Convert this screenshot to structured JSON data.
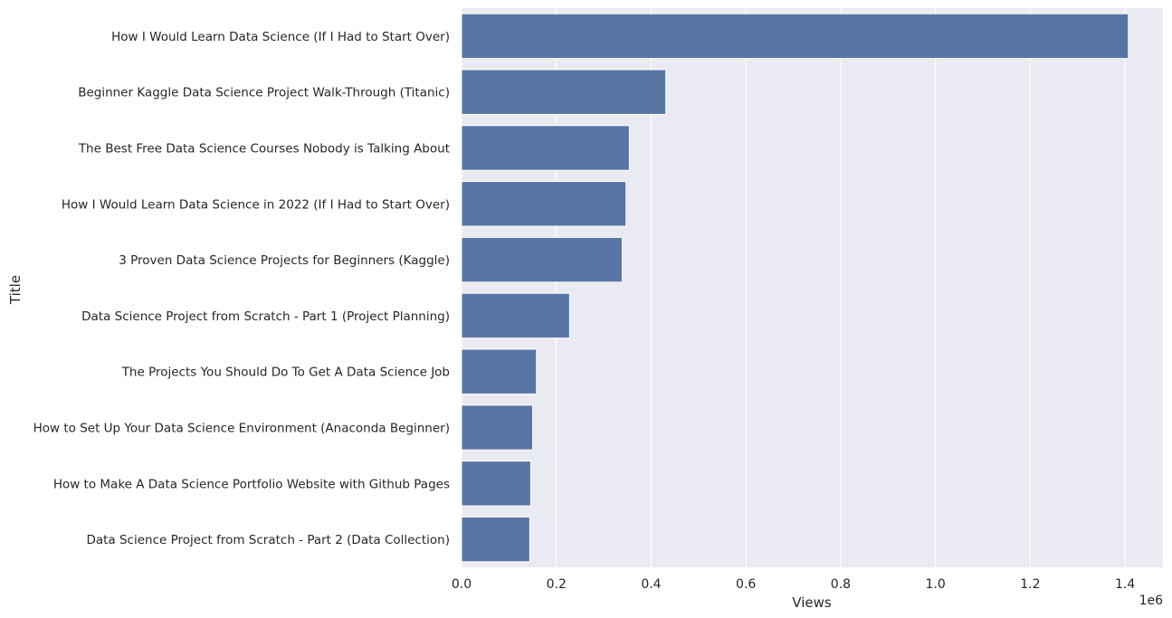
{
  "chart_data": {
    "type": "bar",
    "orientation": "horizontal",
    "categories": [
      "How I Would Learn Data Science (If I Had to Start Over)",
      "Beginner Kaggle Data Science Project Walk-Through (Titanic)",
      "The Best Free Data Science Courses Nobody is Talking About",
      "How I Would Learn Data Science in 2022 (If I Had to Start Over)",
      "3 Proven Data Science Projects for Beginners (Kaggle)",
      "Data Science Project from Scratch - Part 1 (Project Planning)",
      "The Projects You Should Do To Get A Data Science Job",
      "How to Set Up Your Data Science Environment (Anaconda Beginner)",
      "How to Make A Data Science Portfolio Website with Github Pages",
      "Data Science Project from Scratch - Part 2 (Data Collection)"
    ],
    "values": [
      1407000,
      431000,
      354000,
      347000,
      339000,
      228000,
      158000,
      150000,
      146000,
      144000
    ],
    "xlabel": "Views",
    "ylabel": "Title",
    "xlim": [
      0,
      1480000
    ],
    "xticks": [
      0,
      200000,
      400000,
      600000,
      800000,
      1000000,
      1200000,
      1400000
    ],
    "xtick_labels": [
      "0.0",
      "0.2",
      "0.4",
      "0.6",
      "0.8",
      "1.0",
      "1.2",
      "1.4"
    ],
    "x_offset_label": "1e6",
    "grid": true,
    "colors": {
      "bar": "#5975a4",
      "plot_bg": "#eaeaf2",
      "grid": "#ffffff",
      "text": "#262626"
    }
  }
}
